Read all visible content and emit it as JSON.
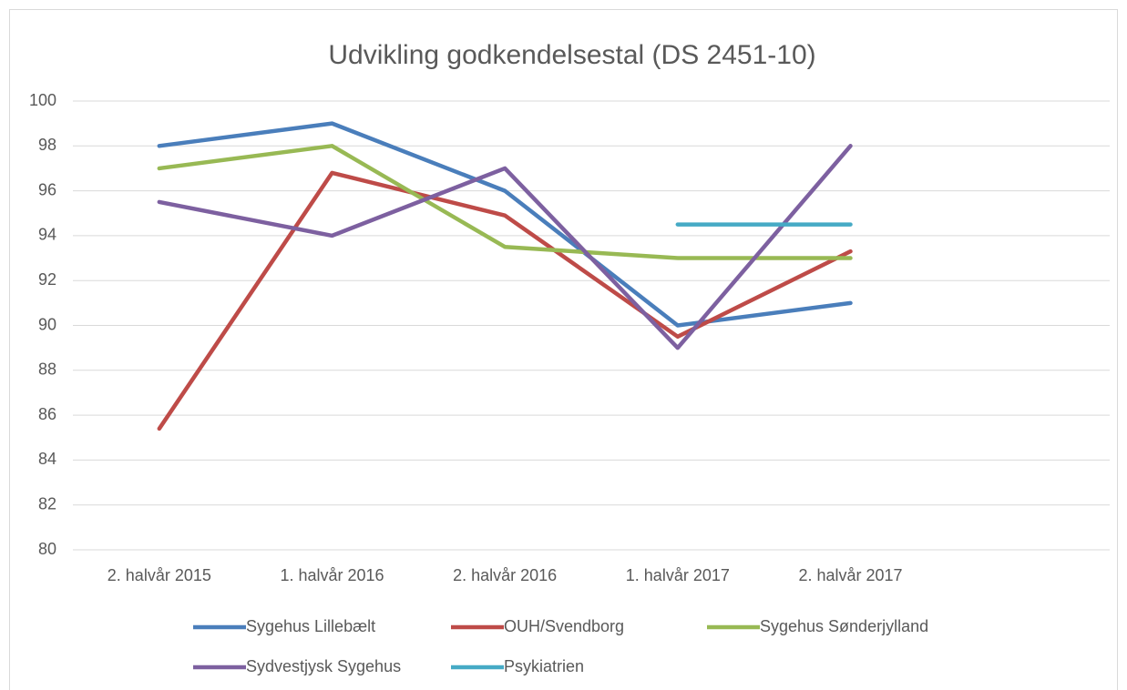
{
  "chart_data": {
    "type": "line",
    "title": "Udvikling godkendelsestal (DS 2451-10)",
    "categories": [
      "2. halvår 2015",
      "1. halvår 2016",
      "2. halvår 2016",
      "1. halvår 2017",
      "2. halvår 2017",
      null
    ],
    "series": [
      {
        "name": "Sygehus Lillebælt",
        "color": "#4a7ebb",
        "values": [
          98,
          99,
          96,
          90,
          91,
          null
        ]
      },
      {
        "name": "OUH/Svendborg",
        "color": "#be4b48",
        "values": [
          85.4,
          96.8,
          94.9,
          89.5,
          93.3,
          null
        ]
      },
      {
        "name": "Sygehus Sønderjylland",
        "color": "#98b954",
        "values": [
          97,
          98,
          93.5,
          93,
          93,
          null
        ]
      },
      {
        "name": "Sydvestjysk Sygehus",
        "color": "#7d60a0",
        "values": [
          95.5,
          94,
          97,
          89,
          98,
          null
        ]
      },
      {
        "name": "Psykiatrien",
        "color": "#46aac5",
        "values": [
          null,
          null,
          null,
          94.5,
          94.5,
          null
        ]
      }
    ],
    "ylim": [
      80,
      100
    ],
    "yticks": [
      80,
      82,
      84,
      86,
      88,
      90,
      92,
      94,
      96,
      98,
      100
    ],
    "grid": true,
    "legend": "bottom"
  }
}
